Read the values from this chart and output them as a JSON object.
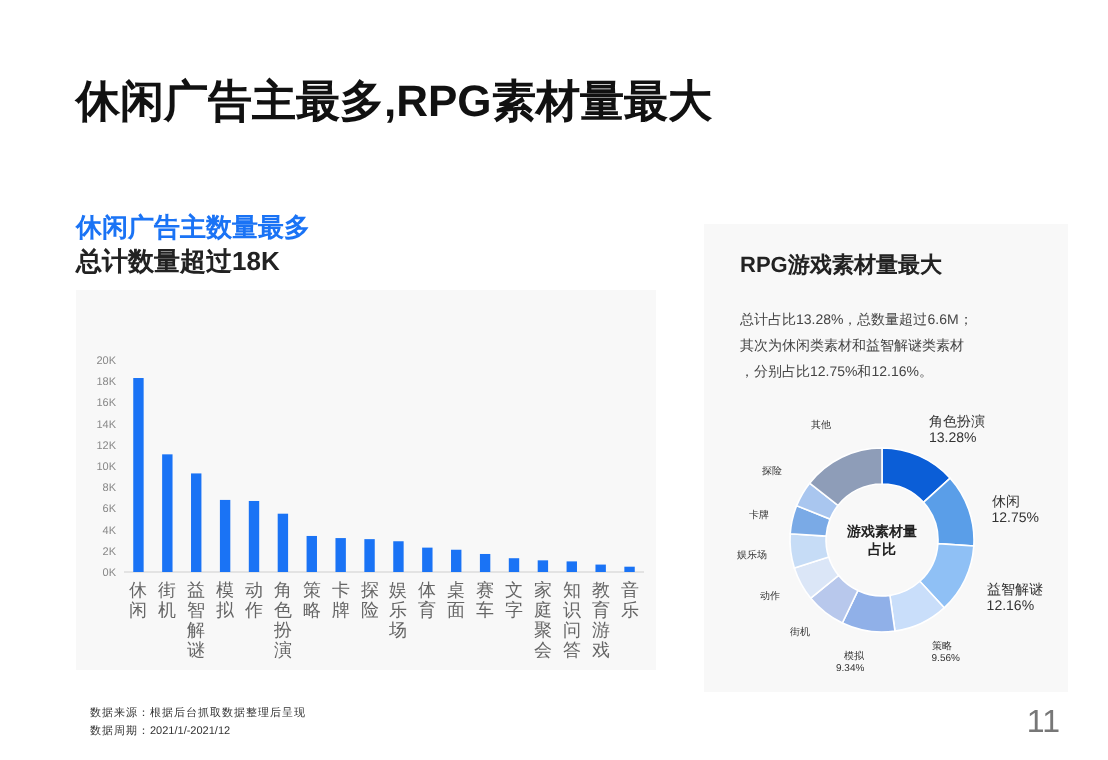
{
  "chart_data": [
    {
      "type": "bar",
      "title": "休闲广告主数量最多",
      "subtitle": "总计数量超过18K",
      "color": "#1a73f5",
      "categories": [
        "休闲",
        "街机",
        "益智解谜",
        "模拟",
        "动作",
        "角色扮演",
        "策略",
        "卡牌",
        "探险",
        "娱乐场",
        "体育",
        "桌面",
        "赛车",
        "文字",
        "家庭聚会",
        "知识问答",
        "教育游戏",
        "音乐"
      ],
      "values": [
        18300,
        11100,
        9300,
        6800,
        6700,
        5500,
        3400,
        3200,
        3100,
        2900,
        2300,
        2100,
        1700,
        1300,
        1100,
        1000,
        700,
        500
      ],
      "ylim": [
        0,
        20000
      ],
      "yticks": [
        {
          "value": 0,
          "label": "0K"
        },
        {
          "value": 2000,
          "label": "2K"
        },
        {
          "value": 4000,
          "label": "4K"
        },
        {
          "value": 6000,
          "label": "6K"
        },
        {
          "value": 8000,
          "label": "8K"
        },
        {
          "value": 10000,
          "label": "10K"
        },
        {
          "value": 12000,
          "label": "12K"
        },
        {
          "value": 14000,
          "label": "14K"
        },
        {
          "value": 16000,
          "label": "16K"
        },
        {
          "value": 18000,
          "label": "18K"
        },
        {
          "value": 20000,
          "label": "20K"
        }
      ],
      "annotations": [
        "休闲广告主最多,RPG素材量最大",
        "数据来源：根据后台抓取数据整理后呈现",
        "数据周期：2021/1/-2021/12",
        "11"
      ]
    },
    {
      "type": "donut",
      "title": "RPG游戏素材量最大",
      "subtitle": "总计占比13.28%，总数量超过6.6M；其次为休闲类素材和益智解谜类素材，分别占比12.75%和12.16%。",
      "categories": [
        "角色扮演",
        "休闲",
        "益智解谜",
        "策略",
        "模拟",
        "街机",
        "动作",
        "娱乐场",
        "卡牌",
        "探险",
        "其他"
      ],
      "values": [
        13.28,
        12.75,
        12.16,
        9.56,
        9.34,
        7,
        6,
        6,
        5,
        4.5,
        14.41
      ],
      "value_labels": [
        "13.28%",
        "12.75%",
        "12.16%",
        "9.56%",
        "9.34%",
        null,
        null,
        null,
        null,
        null,
        null
      ],
      "colors": [
        "#0b5ed7",
        "#5a9ee8",
        "#8fc0f5",
        "#c9defa",
        "#90b0e8",
        "#b8c8ec",
        "#dbe6f7",
        "#c6dcf6",
        "#7aaae6",
        "#a9c6ef",
        "#8e9db8"
      ],
      "annotations": [
        "游戏素材量占比"
      ]
    }
  ]
}
